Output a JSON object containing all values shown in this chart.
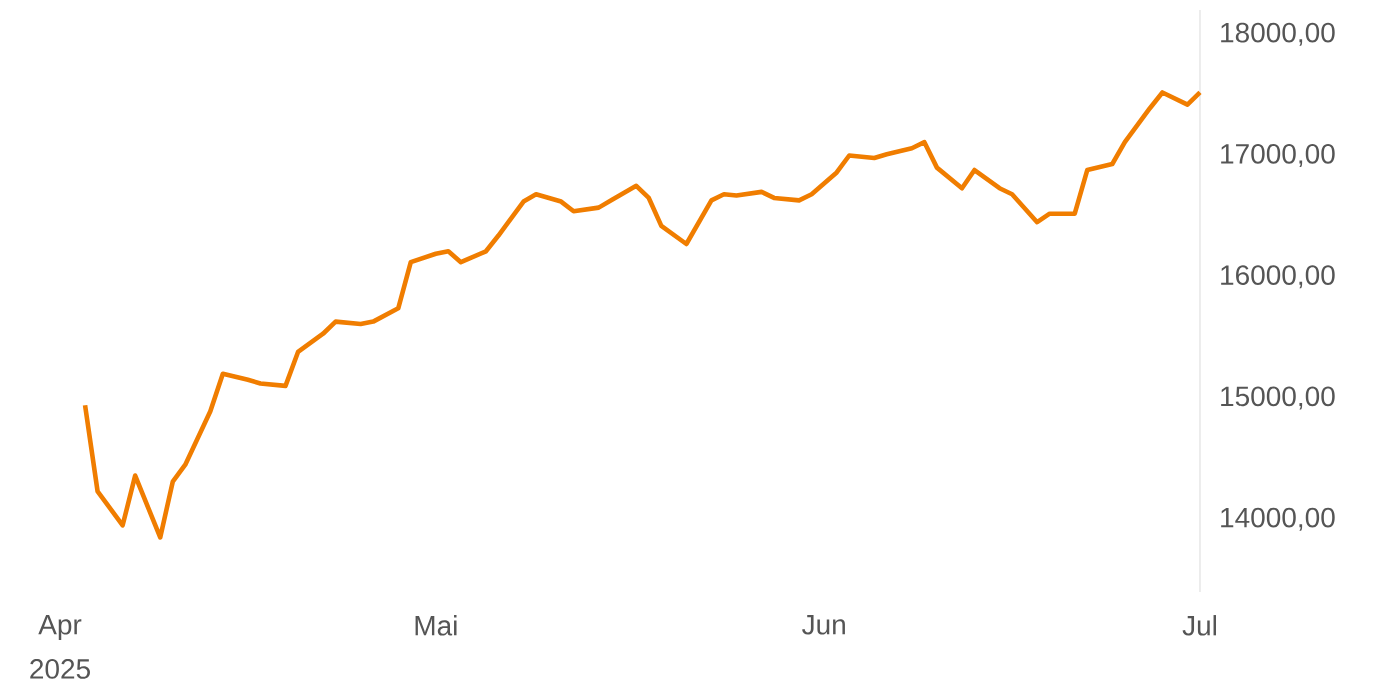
{
  "chart_data": {
    "type": "line",
    "x": [
      "2025-04-03",
      "2025-04-04",
      "2025-04-06",
      "2025-04-07",
      "2025-04-09",
      "2025-04-10",
      "2025-04-11",
      "2025-04-13",
      "2025-04-14",
      "2025-04-16",
      "2025-04-17",
      "2025-04-19",
      "2025-04-20",
      "2025-04-22",
      "2025-04-23",
      "2025-04-25",
      "2025-04-26",
      "2025-04-28",
      "2025-04-29",
      "2025-05-01",
      "2025-05-02",
      "2025-05-03",
      "2025-05-05",
      "2025-05-06",
      "2025-05-08",
      "2025-05-09",
      "2025-05-11",
      "2025-05-12",
      "2025-05-14",
      "2025-05-15",
      "2025-05-17",
      "2025-05-18",
      "2025-05-19",
      "2025-05-21",
      "2025-05-23",
      "2025-05-24",
      "2025-05-25",
      "2025-05-27",
      "2025-05-28",
      "2025-05-30",
      "2025-05-31",
      "2025-06-02",
      "2025-06-03",
      "2025-06-05",
      "2025-06-06",
      "2025-06-08",
      "2025-06-09",
      "2025-06-10",
      "2025-06-12",
      "2025-06-13",
      "2025-06-15",
      "2025-06-16",
      "2025-06-18",
      "2025-06-19",
      "2025-06-21",
      "2025-06-22",
      "2025-06-24",
      "2025-06-25",
      "2025-06-27",
      "2025-06-28",
      "2025-06-30",
      "2025-07-01"
    ],
    "series": [
      {
        "color": "#f07d00",
        "values": [
          14940,
          14230,
          13950,
          14360,
          13850,
          14310,
          14450,
          14890,
          15200,
          15150,
          15120,
          15100,
          15380,
          15530,
          15630,
          15610,
          15630,
          15740,
          16120,
          16190,
          16210,
          16120,
          16210,
          16340,
          16620,
          16680,
          16620,
          16540,
          16570,
          16630,
          16750,
          16650,
          16420,
          16270,
          16630,
          16680,
          16670,
          16700,
          16650,
          16630,
          16680,
          16860,
          17000,
          16980,
          17010,
          17060,
          17110,
          16900,
          16730,
          16880,
          16730,
          16680,
          16450,
          16520,
          16520,
          16880,
          16930,
          17110,
          17390,
          17520,
          17420,
          17520
        ]
      }
    ],
    "xlim": [
      "2025-04-01",
      "2025-07-01"
    ],
    "xticks": [
      {
        "value": "2025-04-01",
        "label": "Apr"
      },
      {
        "value": "2025-05-01",
        "label": "Mai"
      },
      {
        "value": "2025-06-01",
        "label": "Jun"
      },
      {
        "value": "2025-07-01",
        "label": "Jul"
      }
    ],
    "yticks": [
      {
        "value": 14000,
        "label": "14000,00"
      },
      {
        "value": 15000,
        "label": "15000,00"
      },
      {
        "value": 16000,
        "label": "16000,00"
      },
      {
        "value": 17000,
        "label": "17000,00"
      },
      {
        "value": 18000,
        "label": "18000,00"
      }
    ],
    "annotations": [
      "2025"
    ],
    "ylim": [
      13400,
      18200
    ],
    "grid": false,
    "marker": "none",
    "line_style": "solid"
  }
}
